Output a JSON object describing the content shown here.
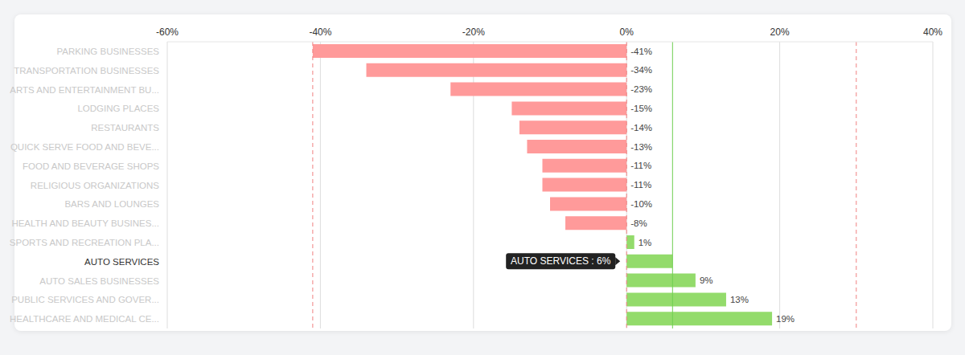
{
  "chart_data": {
    "type": "bar",
    "orientation": "horizontal",
    "categories": [
      "PARKING BUSINESSES",
      "TRANSPORTATION BUSINESSES",
      "ARTS AND ENTERTAINMENT BU...",
      "LODGING PLACES",
      "RESTAURANTS",
      "QUICK SERVE FOOD AND BEVE...",
      "FOOD AND BEVERAGE SHOPS",
      "RELIGIOUS ORGANIZATIONS",
      "BARS AND LOUNGES",
      "HEALTH AND BEAUTY BUSINES...",
      "SPORTS AND RECREATION PLA...",
      "AUTO SERVICES",
      "AUTO SALES BUSINESSES",
      "PUBLIC SERVICES AND GOVER...",
      "HEALTHCARE AND MEDICAL CE..."
    ],
    "values": [
      -41,
      -34,
      -23,
      -15,
      -14,
      -13,
      -11,
      -11,
      -10,
      -8,
      1,
      6,
      9,
      13,
      19
    ],
    "value_labels": [
      "-41%",
      "-34%",
      "-23%",
      "-15%",
      "-14%",
      "-13%",
      "-11%",
      "-11%",
      "-10%",
      "-8%",
      "1%",
      null,
      "9%",
      "13%",
      "19%"
    ],
    "colors": [
      "#ff9a9a",
      "#ff9a9a",
      "#ff9a9a",
      "#ff9a9a",
      "#ff9a9a",
      "#ff9a9a",
      "#ff9a9a",
      "#ff9a9a",
      "#ff9a9a",
      "#ff9a9a",
      "#93db6b",
      "#93db6b",
      "#93db6b",
      "#93db6b",
      "#93db6b"
    ],
    "xlim": [
      -60,
      40
    ],
    "xticks": [
      {
        "value": -60,
        "label": "-60%"
      },
      {
        "value": -40,
        "label": "-40%"
      },
      {
        "value": -20,
        "label": "-20%"
      },
      {
        "value": 0,
        "label": "0%"
      },
      {
        "value": 20,
        "label": "20%"
      },
      {
        "value": 40,
        "label": "40%"
      }
    ],
    "grid": true,
    "data_labels": true,
    "reference_lines": [
      {
        "value": -41,
        "color": "#f08080",
        "line_style": "dashed"
      },
      {
        "value": 0,
        "color": "#f08080",
        "line_style": "dashed"
      },
      {
        "value": 30,
        "color": "#f08080",
        "line_style": "dashed"
      },
      {
        "value": 6,
        "color": "#6fcf50",
        "line_style": "solid"
      }
    ],
    "annotations": [
      {
        "category": "AUTO SERVICES",
        "text": "AUTO SERVICES : 6%"
      }
    ]
  }
}
